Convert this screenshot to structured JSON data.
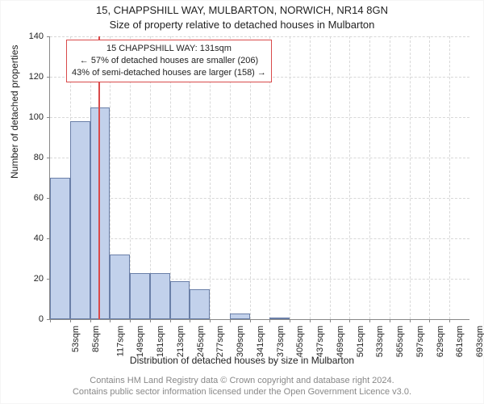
{
  "title_line1": "15, CHAPPSHILL WAY, MULBARTON, NORWICH, NR14 8GN",
  "title_line2": "Size of property relative to detached houses in Mulbarton",
  "ylabel": "Number of detached properties",
  "xlabel": "Distribution of detached houses by size in Mulbarton",
  "credit1": "Contains HM Land Registry data © Crown copyright and database right 2024.",
  "credit2": "Contains public sector information licensed under the Open Government Licence v3.0.",
  "chart": {
    "type": "histogram",
    "ylim": [
      0,
      140
    ],
    "yticks": [
      0,
      20,
      40,
      60,
      80,
      100,
      120,
      140
    ],
    "xtick_labels": [
      "53sqm",
      "85sqm",
      "117sqm",
      "149sqm",
      "181sqm",
      "213sqm",
      "245sqm",
      "277sqm",
      "309sqm",
      "341sqm",
      "373sqm",
      "405sqm",
      "437sqm",
      "469sqm",
      "501sqm",
      "533sqm",
      "565sqm",
      "597sqm",
      "629sqm",
      "661sqm",
      "693sqm"
    ],
    "values": [
      70,
      98,
      105,
      32,
      23,
      23,
      19,
      15,
      0,
      3,
      0,
      1,
      0,
      0,
      0,
      0,
      0,
      0,
      0,
      0,
      0
    ],
    "bar_color": "#c2d1eb",
    "bar_border": "#6a7fa8",
    "background_color": "#ffffff",
    "grid_color": "#d8d8d8",
    "axis_color": "#888888",
    "marker": {
      "value_sqm": 131,
      "bin_index_after": 2,
      "fraction_into_bin": 0.44,
      "color": "#d94a4a"
    },
    "callout": {
      "line1": "15 CHAPPSHILL WAY: 131sqm",
      "line2": "← 57% of detached houses are smaller (206)",
      "line3": "43% of semi-detached houses are larger (158) →",
      "border_color": "#d94a4a"
    }
  }
}
